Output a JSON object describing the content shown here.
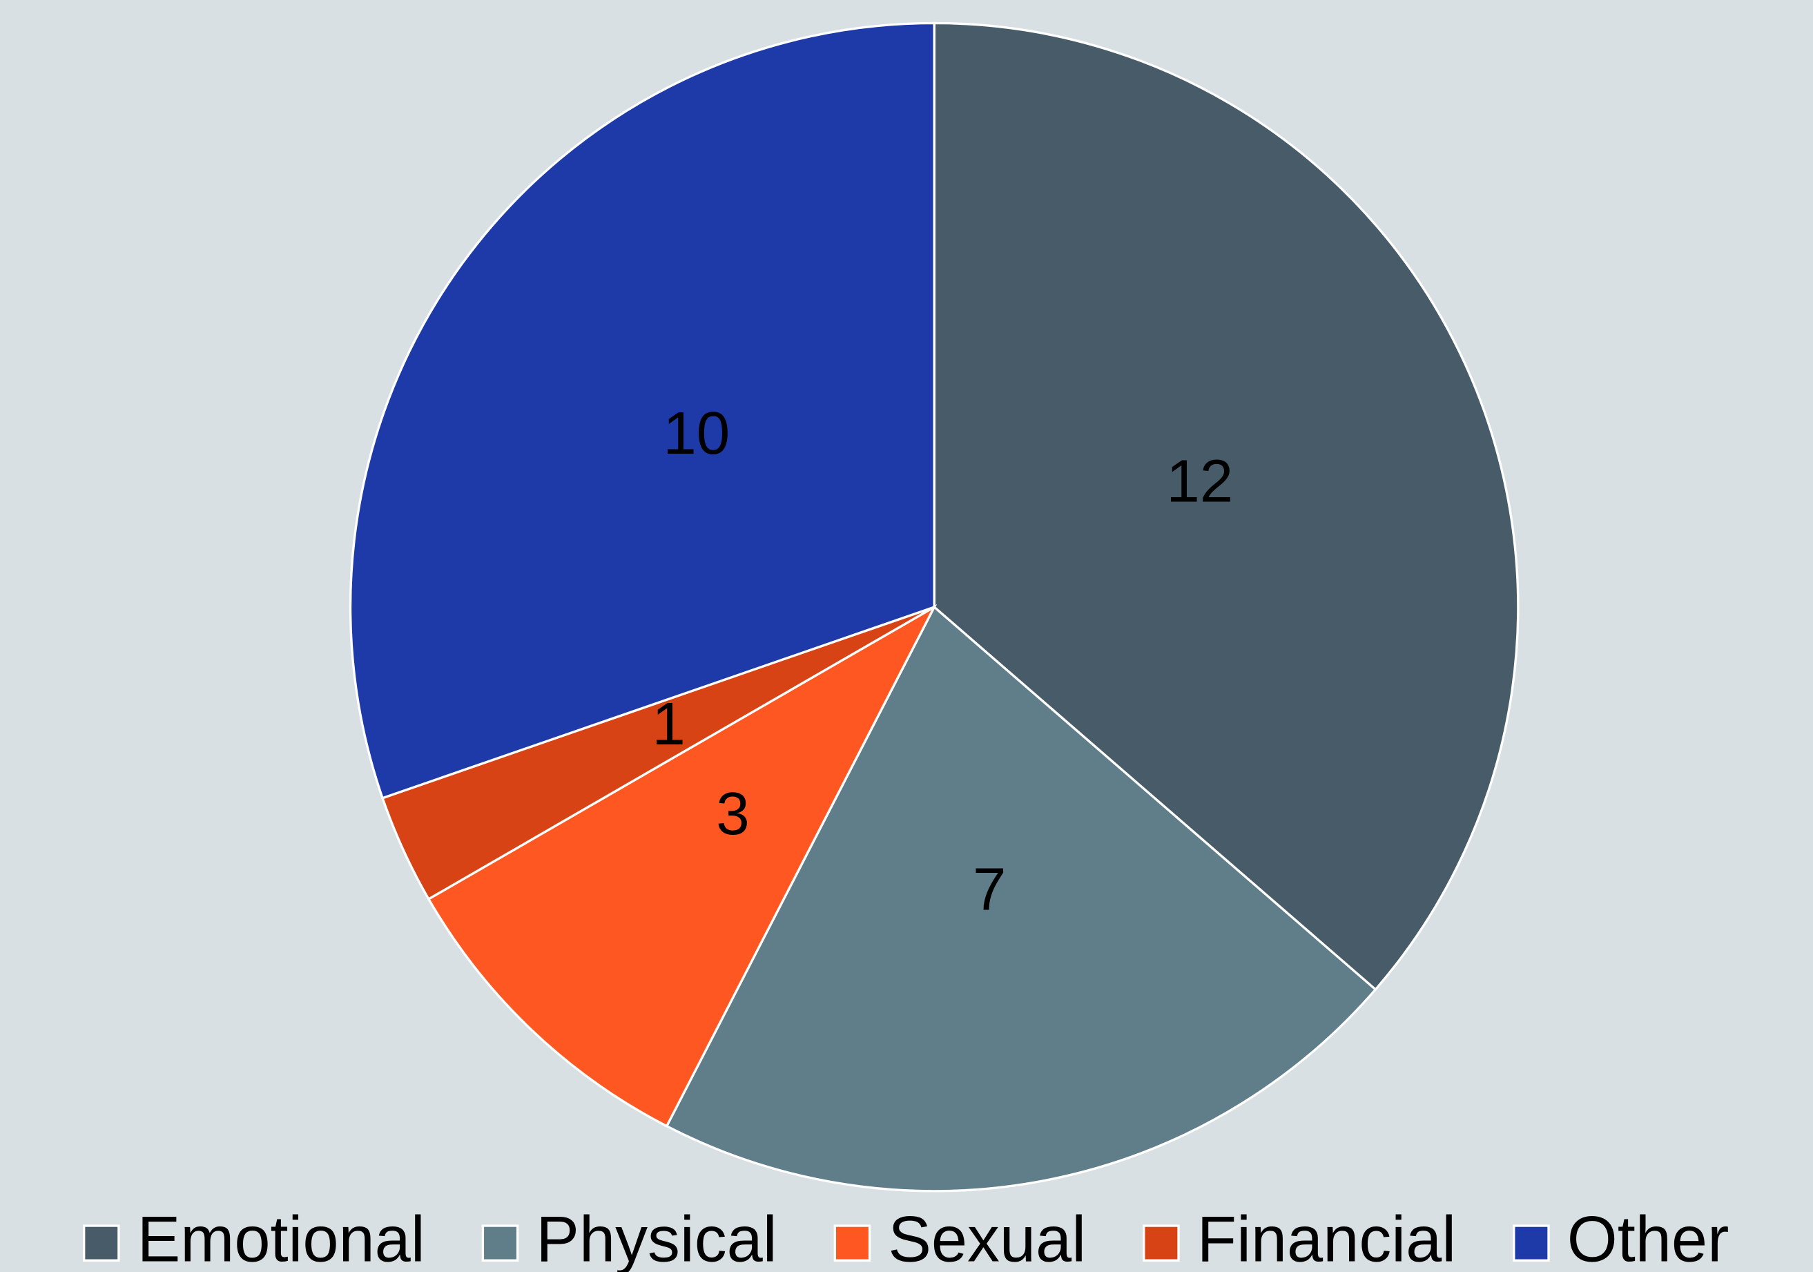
{
  "chart_data": {
    "type": "pie",
    "categories": [
      "Emotional",
      "Physical",
      "Sexual",
      "Financial",
      "Other"
    ],
    "values": [
      12,
      7,
      3,
      1,
      10
    ],
    "colors": [
      "#475c68",
      "#607d8a",
      "#ff5722",
      "#d84315",
      "#1e3aa8"
    ],
    "legend": "bottom"
  }
}
